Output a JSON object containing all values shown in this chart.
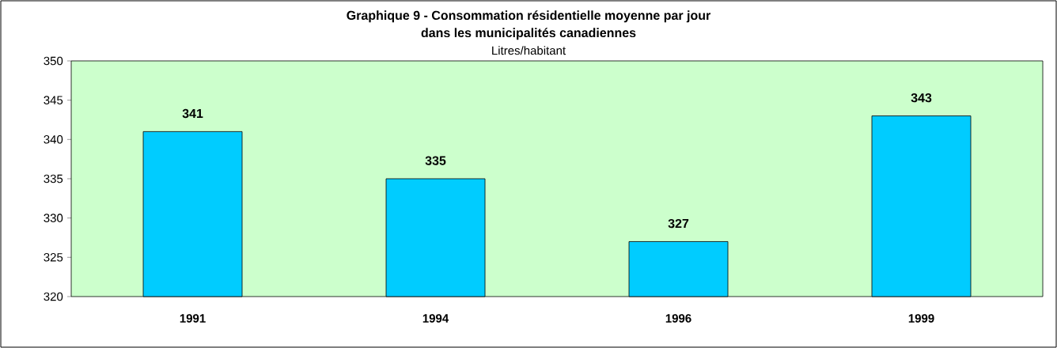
{
  "chart_data": {
    "type": "bar",
    "title": "Graphique 9 - Consommation résidentielle moyenne par jour\ndans les municipalités canadiennes",
    "subtitle": "Litres/habitant",
    "categories": [
      "1991",
      "1994",
      "1996",
      "1999"
    ],
    "values": [
      341,
      335,
      327,
      343
    ],
    "color": "#00ccff",
    "ylim": [
      320,
      350
    ],
    "yticks": [
      320,
      325,
      330,
      335,
      340,
      345,
      350
    ],
    "data_labels": true,
    "grid": false
  }
}
